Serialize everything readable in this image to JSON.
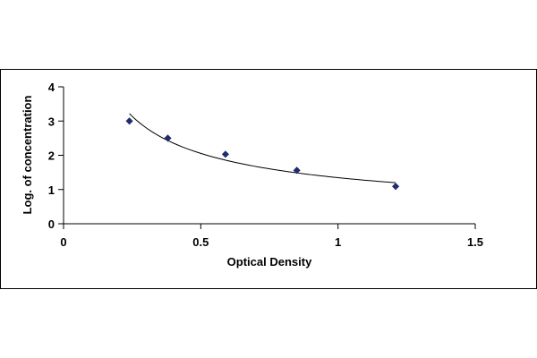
{
  "chart_data": {
    "type": "scatter",
    "title": "",
    "xlabel": "Optical Density",
    "ylabel": "Log. of concentration",
    "xlim": [
      0,
      1.5
    ],
    "ylim": [
      0,
      4
    ],
    "x_ticks": [
      "0",
      "0.5",
      "1",
      "1.5"
    ],
    "y_ticks": [
      "0",
      "1",
      "2",
      "3",
      "4"
    ],
    "grid": false,
    "legend": "none",
    "trendline": true,
    "series": [
      {
        "marker": "diamond",
        "color": "#1f2d6e",
        "points": [
          {
            "x": 0.24,
            "y": 3.0
          },
          {
            "x": 0.38,
            "y": 2.5
          },
          {
            "x": 0.59,
            "y": 2.03
          },
          {
            "x": 0.85,
            "y": 1.56
          },
          {
            "x": 1.21,
            "y": 1.09
          }
        ]
      }
    ]
  }
}
